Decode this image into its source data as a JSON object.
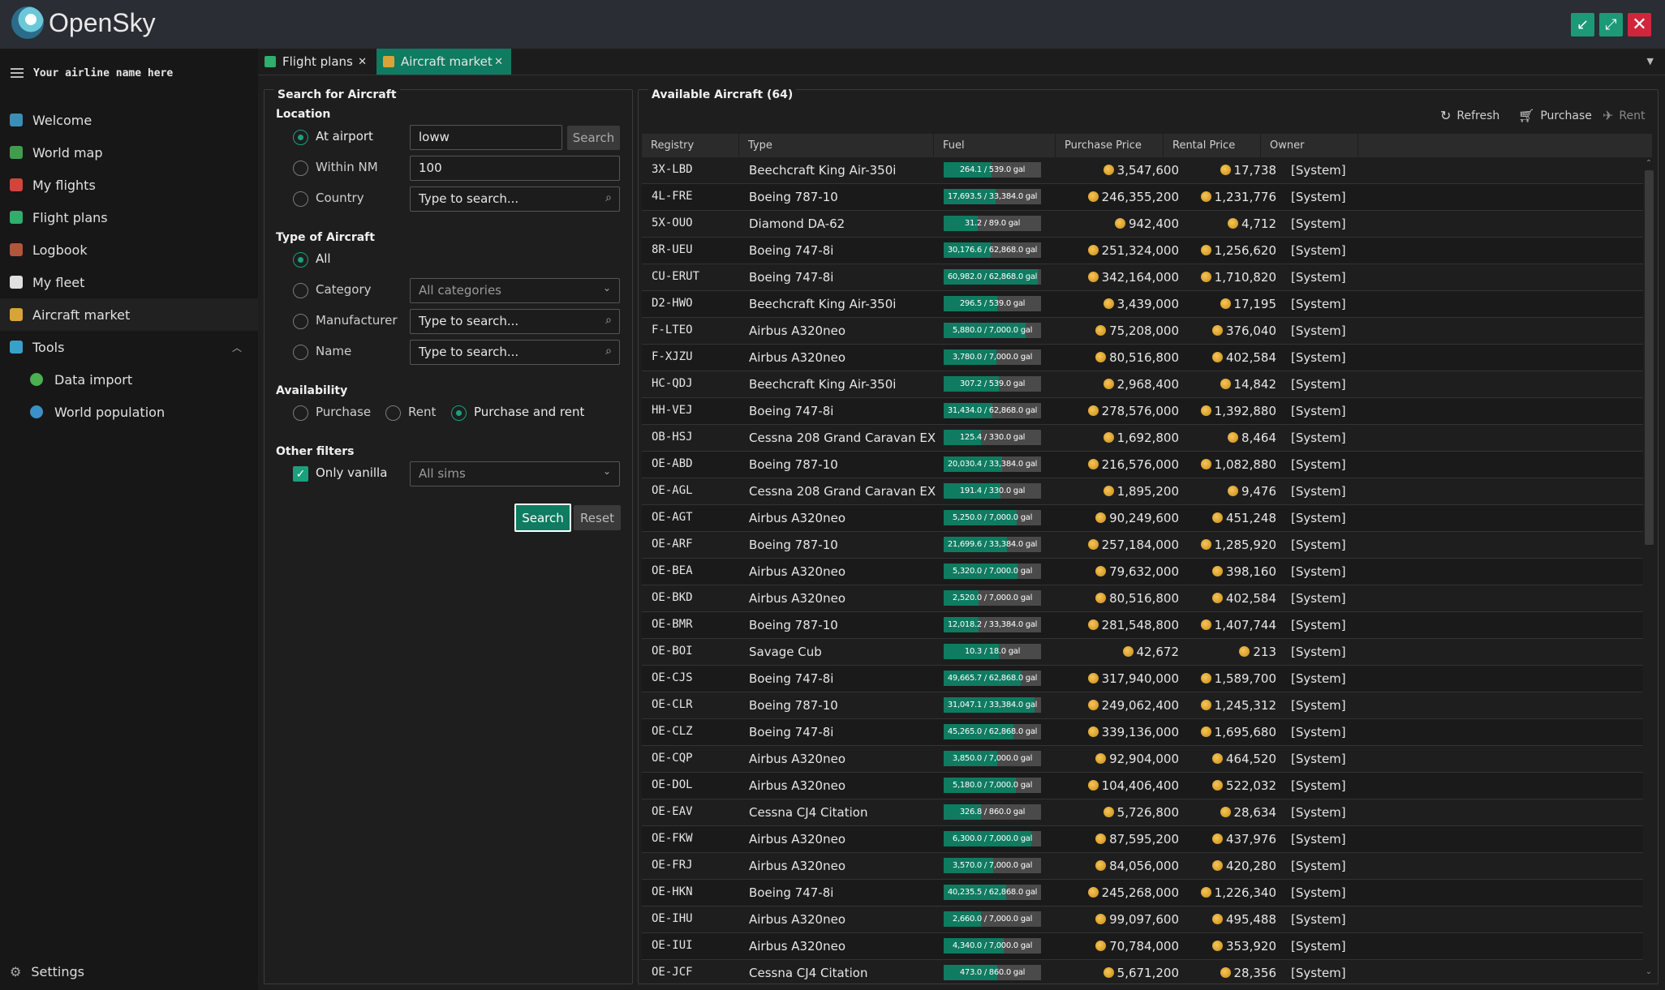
{
  "app": {
    "title": "OpenSky"
  },
  "window_controls": {
    "minimize": "↙",
    "maximize": "⤢",
    "close": "✕"
  },
  "sidebar": {
    "airline_name": "Your airline name here",
    "items": [
      {
        "label": "Welcome",
        "icon": "welcome-globe-icon",
        "color": "#3a8fb7"
      },
      {
        "label": "World map",
        "icon": "world-map-icon",
        "color": "#3f9e4e"
      },
      {
        "label": "My flights",
        "icon": "my-flights-icon",
        "color": "#d2453a"
      },
      {
        "label": "Flight plans",
        "icon": "flight-plans-icon",
        "color": "#2fae6c"
      },
      {
        "label": "Logbook",
        "icon": "logbook-icon",
        "color": "#b3553a"
      },
      {
        "label": "My fleet",
        "icon": "airplane-icon",
        "color": "#e0e0e0"
      },
      {
        "label": "Aircraft market",
        "icon": "market-cart-icon",
        "color": "#d9a33a"
      },
      {
        "label": "Tools",
        "icon": "tools-icon",
        "color": "#3aa0c9"
      },
      {
        "label": "Data import",
        "icon": "data-import-icon",
        "color": "#4caf50"
      },
      {
        "label": "World population",
        "icon": "world-population-icon",
        "color": "#3a90c9"
      }
    ],
    "settings_label": "Settings"
  },
  "tabs": [
    {
      "label": "Flight plans",
      "close": "✕"
    },
    {
      "label": "Aircraft market",
      "close": "✕"
    }
  ],
  "search_panel": {
    "title": "Search for Aircraft",
    "location": {
      "title": "Location",
      "at_airport_label": "At airport",
      "at_airport_value": "loww",
      "search_button": "Search",
      "within_nm_label": "Within NM",
      "within_nm_value": "100",
      "country_label": "Country",
      "country_placeholder": "Type to search..."
    },
    "type": {
      "title": "Type of Aircraft",
      "all_label": "All",
      "category_label": "Category",
      "category_placeholder": "All categories",
      "manufacturer_label": "Manufacturer",
      "manufacturer_placeholder": "Type to search...",
      "name_label": "Name",
      "name_placeholder": "Type to search..."
    },
    "availability": {
      "title": "Availability",
      "purchase_label": "Purchase",
      "rent_label": "Rent",
      "purchase_rent_label": "Purchase and rent"
    },
    "other": {
      "title": "Other filters",
      "only_vanilla_label": "Only vanilla",
      "sims_placeholder": "All sims"
    },
    "search_button": "Search",
    "reset_button": "Reset"
  },
  "results": {
    "title": "Available Aircraft (64)",
    "toolbar": {
      "refresh": "Refresh",
      "purchase": "Purchase",
      "rent": "Rent"
    },
    "columns": [
      "Registry",
      "Type",
      "Fuel",
      "Purchase Price",
      "Rental Price",
      "Owner"
    ],
    "rows": [
      {
        "reg": "3X-LBD",
        "type": "Beechcraft King Air-350i",
        "fuel": "264.1 / 539.0 gal",
        "fill": 0.49,
        "pp": "3,547,600",
        "rp": "17,738",
        "owner": "[System]"
      },
      {
        "reg": "4L-FRE",
        "type": "Boeing 787-10",
        "fuel": "17,693.5 / 33,384.0 gal",
        "fill": 0.53,
        "pp": "246,355,200",
        "rp": "1,231,776",
        "owner": "[System]"
      },
      {
        "reg": "5X-OUO",
        "type": "Diamond DA-62",
        "fuel": "31.2 / 89.0 gal",
        "fill": 0.35,
        "pp": "942,400",
        "rp": "4,712",
        "owner": "[System]"
      },
      {
        "reg": "8R-UEU",
        "type": "Boeing 747-8i",
        "fuel": "30,176.6 / 62,868.0 gal",
        "fill": 0.48,
        "pp": "251,324,000",
        "rp": "1,256,620",
        "owner": "[System]"
      },
      {
        "reg": "CU-ERUT",
        "type": "Boeing 747-8i",
        "fuel": "60,982.0 / 62,868.0 gal",
        "fill": 0.97,
        "pp": "342,164,000",
        "rp": "1,710,820",
        "owner": "[System]"
      },
      {
        "reg": "D2-HWO",
        "type": "Beechcraft King Air-350i",
        "fuel": "296.5 / 539.0 gal",
        "fill": 0.55,
        "pp": "3,439,000",
        "rp": "17,195",
        "owner": "[System]"
      },
      {
        "reg": "F-LTEO",
        "type": "Airbus A320neo",
        "fuel": "5,880.0 / 7,000.0 gal",
        "fill": 0.84,
        "pp": "75,208,000",
        "rp": "376,040",
        "owner": "[System]"
      },
      {
        "reg": "F-XJZU",
        "type": "Airbus A320neo",
        "fuel": "3,780.0 / 7,000.0 gal",
        "fill": 0.54,
        "pp": "80,516,800",
        "rp": "402,584",
        "owner": "[System]"
      },
      {
        "reg": "HC-QDJ",
        "type": "Beechcraft King Air-350i",
        "fuel": "307.2 / 539.0 gal",
        "fill": 0.57,
        "pp": "2,968,400",
        "rp": "14,842",
        "owner": "[System]"
      },
      {
        "reg": "HH-VEJ",
        "type": "Boeing 747-8i",
        "fuel": "31,434.0 / 62,868.0 gal",
        "fill": 0.5,
        "pp": "278,576,000",
        "rp": "1,392,880",
        "owner": "[System]"
      },
      {
        "reg": "OB-HSJ",
        "type": "Cessna 208 Grand Caravan EX",
        "fuel": "125.4 / 330.0 gal",
        "fill": 0.38,
        "pp": "1,692,800",
        "rp": "8,464",
        "owner": "[System]"
      },
      {
        "reg": "OE-ABD",
        "type": "Boeing 787-10",
        "fuel": "20,030.4 / 33,384.0 gal",
        "fill": 0.6,
        "pp": "216,576,000",
        "rp": "1,082,880",
        "owner": "[System]"
      },
      {
        "reg": "OE-AGL",
        "type": "Cessna 208 Grand Caravan EX",
        "fuel": "191.4 / 330.0 gal",
        "fill": 0.58,
        "pp": "1,895,200",
        "rp": "9,476",
        "owner": "[System]"
      },
      {
        "reg": "OE-AGT",
        "type": "Airbus A320neo",
        "fuel": "5,250.0 / 7,000.0 gal",
        "fill": 0.75,
        "pp": "90,249,600",
        "rp": "451,248",
        "owner": "[System]"
      },
      {
        "reg": "OE-ARF",
        "type": "Boeing 787-10",
        "fuel": "21,699.6 / 33,384.0 gal",
        "fill": 0.65,
        "pp": "257,184,000",
        "rp": "1,285,920",
        "owner": "[System]"
      },
      {
        "reg": "OE-BEA",
        "type": "Airbus A320neo",
        "fuel": "5,320.0 / 7,000.0 gal",
        "fill": 0.76,
        "pp": "79,632,000",
        "rp": "398,160",
        "owner": "[System]"
      },
      {
        "reg": "OE-BKD",
        "type": "Airbus A320neo",
        "fuel": "2,520.0 / 7,000.0 gal",
        "fill": 0.36,
        "pp": "80,516,800",
        "rp": "402,584",
        "owner": "[System]"
      },
      {
        "reg": "OE-BMR",
        "type": "Boeing 787-10",
        "fuel": "12,018.2 / 33,384.0 gal",
        "fill": 0.36,
        "pp": "281,548,800",
        "rp": "1,407,744",
        "owner": "[System]"
      },
      {
        "reg": "OE-BOI",
        "type": "Savage Cub",
        "fuel": "10.3 / 18.0 gal",
        "fill": 0.57,
        "pp": "42,672",
        "rp": "213",
        "owner": "[System]"
      },
      {
        "reg": "OE-CJS",
        "type": "Boeing 747-8i",
        "fuel": "49,665.7 / 62,868.0 gal",
        "fill": 0.79,
        "pp": "317,940,000",
        "rp": "1,589,700",
        "owner": "[System]"
      },
      {
        "reg": "OE-CLR",
        "type": "Boeing 787-10",
        "fuel": "31,047.1 / 33,384.0 gal",
        "fill": 0.93,
        "pp": "249,062,400",
        "rp": "1,245,312",
        "owner": "[System]"
      },
      {
        "reg": "OE-CLZ",
        "type": "Boeing 747-8i",
        "fuel": "45,265.0 / 62,868.0 gal",
        "fill": 0.72,
        "pp": "339,136,000",
        "rp": "1,695,680",
        "owner": "[System]"
      },
      {
        "reg": "OE-CQP",
        "type": "Airbus A320neo",
        "fuel": "3,850.0 / 7,000.0 gal",
        "fill": 0.55,
        "pp": "92,904,000",
        "rp": "464,520",
        "owner": "[System]"
      },
      {
        "reg": "OE-DOL",
        "type": "Airbus A320neo",
        "fuel": "5,180.0 / 7,000.0 gal",
        "fill": 0.74,
        "pp": "104,406,400",
        "rp": "522,032",
        "owner": "[System]"
      },
      {
        "reg": "OE-EAV",
        "type": "Cessna CJ4 Citation",
        "fuel": "326.8 / 860.0 gal",
        "fill": 0.38,
        "pp": "5,726,800",
        "rp": "28,634",
        "owner": "[System]"
      },
      {
        "reg": "OE-FKW",
        "type": "Airbus A320neo",
        "fuel": "6,300.0 / 7,000.0 gal",
        "fill": 0.9,
        "pp": "87,595,200",
        "rp": "437,976",
        "owner": "[System]"
      },
      {
        "reg": "OE-FRJ",
        "type": "Airbus A320neo",
        "fuel": "3,570.0 / 7,000.0 gal",
        "fill": 0.51,
        "pp": "84,056,000",
        "rp": "420,280",
        "owner": "[System]"
      },
      {
        "reg": "OE-HKN",
        "type": "Boeing 747-8i",
        "fuel": "40,235.5 / 62,868.0 gal",
        "fill": 0.64,
        "pp": "245,268,000",
        "rp": "1,226,340",
        "owner": "[System]"
      },
      {
        "reg": "OE-IHU",
        "type": "Airbus A320neo",
        "fuel": "2,660.0 / 7,000.0 gal",
        "fill": 0.38,
        "pp": "99,097,600",
        "rp": "495,488",
        "owner": "[System]"
      },
      {
        "reg": "OE-IUI",
        "type": "Airbus A320neo",
        "fuel": "4,340.0 / 7,000.0 gal",
        "fill": 0.62,
        "pp": "70,784,000",
        "rp": "353,920",
        "owner": "[System]"
      },
      {
        "reg": "OE-JCF",
        "type": "Cessna CJ4 Citation",
        "fuel": "473.0 / 860.0 gal",
        "fill": 0.55,
        "pp": "5,671,200",
        "rp": "28,356",
        "owner": "[System]"
      }
    ]
  }
}
